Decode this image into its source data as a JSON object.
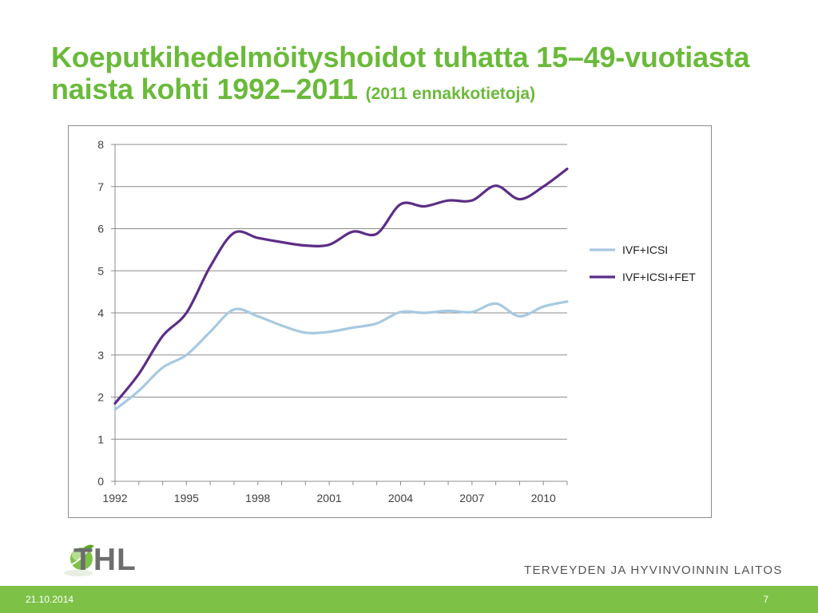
{
  "slide": {
    "title_main": "Koeputkihedelmöityshoidot tuhatta 15–49-vuotiasta naista kohti 1992–2011",
    "title_sub": "(2011 ennakkotietoja)",
    "logo_text": "THL",
    "organization": "TERVEYDEN JA HYVINVOINNIN LAITOS",
    "date": "21.10.2014",
    "page_number": "7"
  },
  "chart_data": {
    "type": "line",
    "title": "",
    "xlabel": "",
    "ylabel": "",
    "x": [
      1992,
      1993,
      1994,
      1995,
      1996,
      1997,
      1998,
      1999,
      2000,
      2001,
      2002,
      2003,
      2004,
      2005,
      2006,
      2007,
      2008,
      2009,
      2010,
      2011
    ],
    "x_tick_labels": [
      "1992",
      "1995",
      "1998",
      "2001",
      "2004",
      "2007",
      "2010"
    ],
    "ylim": [
      0,
      8
    ],
    "y_ticks": [
      0,
      1,
      2,
      3,
      4,
      5,
      6,
      7,
      8
    ],
    "grid": "horizontal",
    "legend_position": "right",
    "series": [
      {
        "name": "IVF+ICSI",
        "color": "#a7c9e0",
        "values": [
          1.7,
          2.15,
          2.7,
          3.0,
          3.55,
          4.08,
          3.92,
          3.7,
          3.53,
          3.55,
          3.65,
          3.75,
          4.02,
          4.0,
          4.05,
          4.02,
          4.22,
          3.92,
          4.15,
          4.27
        ]
      },
      {
        "name": "IVF+ICSI+FET",
        "color": "#5c2d86",
        "values": [
          1.85,
          2.55,
          3.45,
          4.0,
          5.1,
          5.9,
          5.78,
          5.68,
          5.6,
          5.62,
          5.93,
          5.88,
          6.58,
          6.53,
          6.67,
          6.67,
          7.02,
          6.7,
          7.0,
          7.42
        ]
      }
    ]
  },
  "colors": {
    "title": "#6aba3a",
    "footer": "#7dc246"
  }
}
